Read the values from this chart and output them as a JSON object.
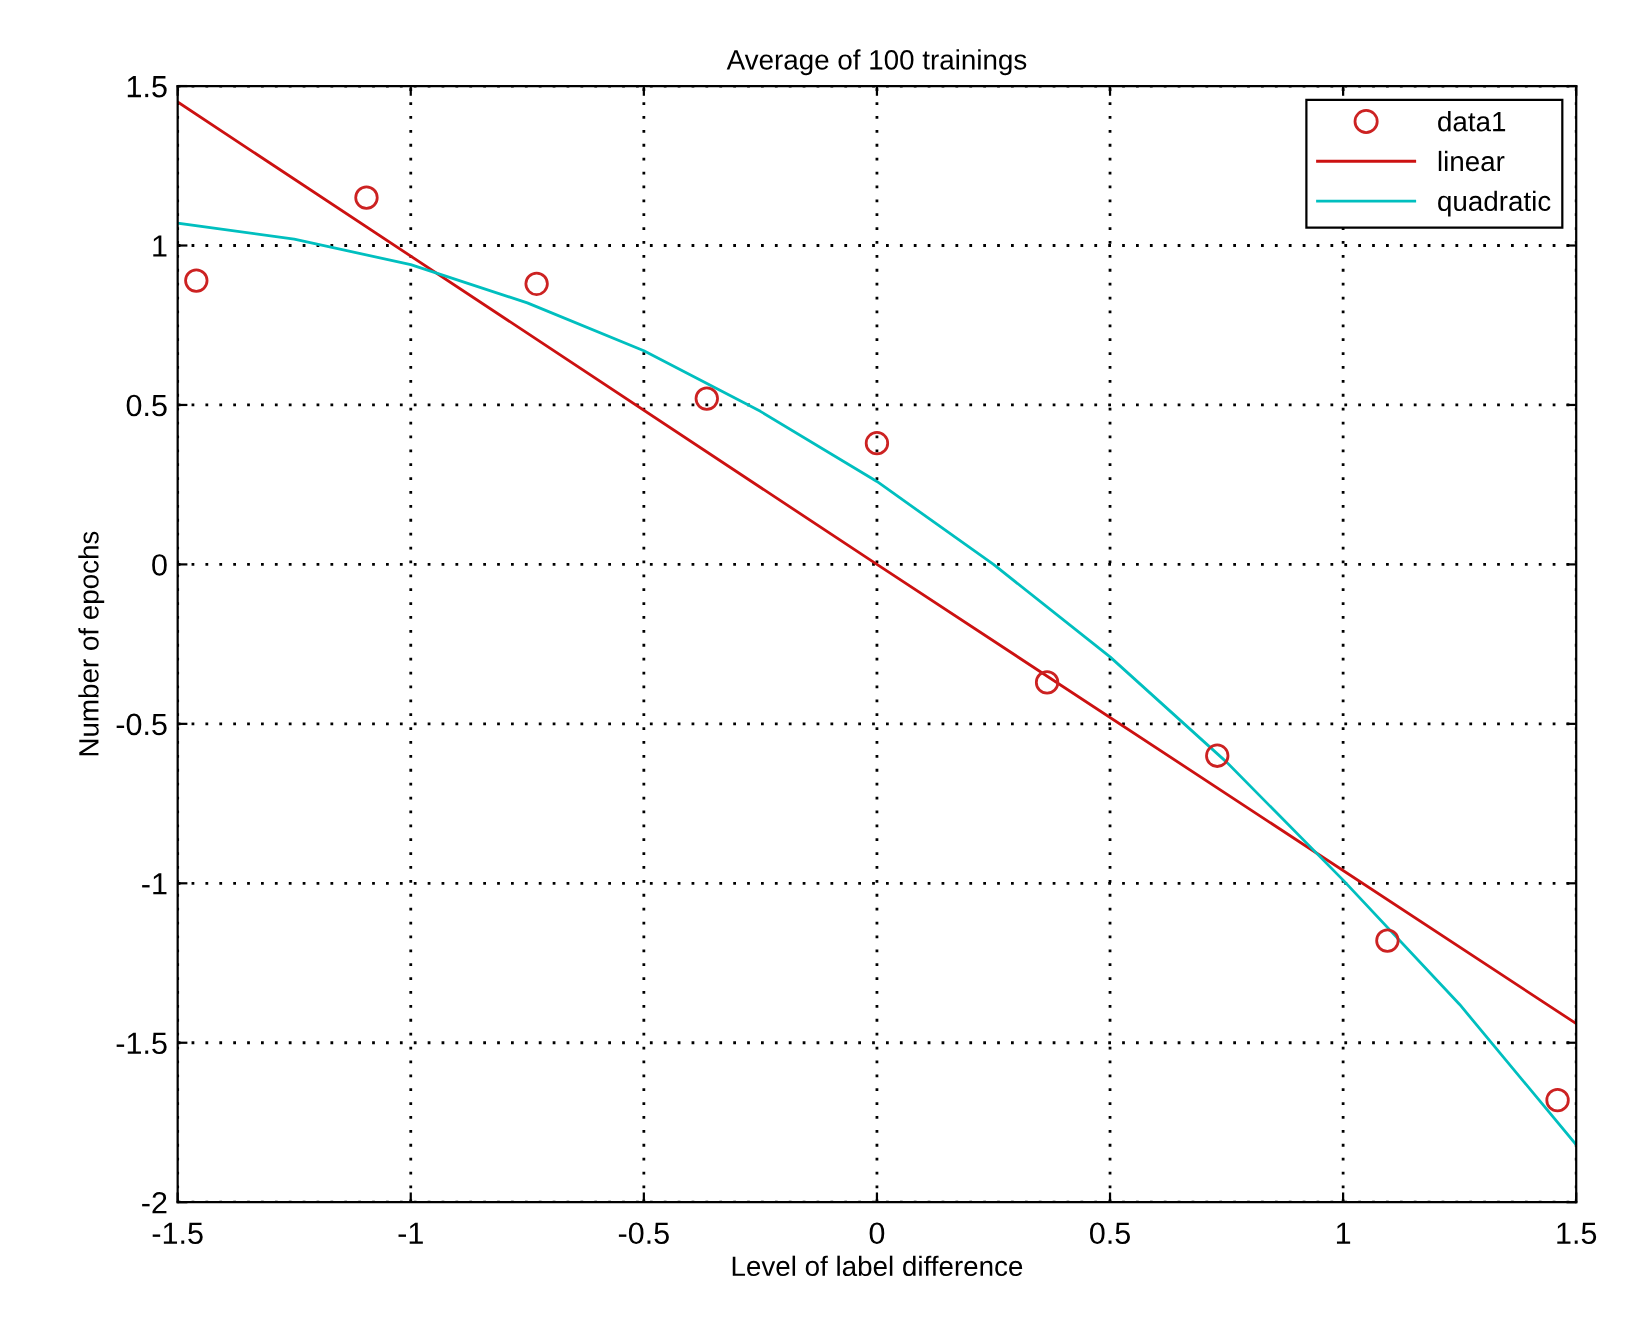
{
  "chart_data": {
    "type": "line",
    "title": "Average of 100 trainings",
    "xlabel": "Level of label difference",
    "ylabel": "Number of epochs",
    "series": [
      {
        "name": "data1",
        "type": "scatter",
        "marker": "circle",
        "color": "#cc2222",
        "x": [
          -1.46,
          -1.095,
          -0.73,
          -0.365,
          0,
          0.365,
          0.73,
          1.095,
          1.46
        ],
        "values": [
          0.89,
          1.15,
          0.88,
          0.52,
          0.38,
          -0.37,
          -0.6,
          -1.18,
          -1.68
        ]
      },
      {
        "name": "linear",
        "color": "#cc1111",
        "x": [
          -1.5,
          0,
          1.5
        ],
        "values": [
          1.45,
          0,
          -1.44
        ]
      },
      {
        "name": "quadratic",
        "color": "#00bfbf",
        "x": [
          -1.5,
          -1.25,
          -1,
          -0.75,
          -0.5,
          -0.25,
          0,
          0.25,
          0.5,
          0.75,
          1,
          1.25,
          1.5
        ],
        "values": [
          1.07,
          1.02,
          0.94,
          0.82,
          0.67,
          0.48,
          0.26,
          0.0,
          -0.29,
          -0.62,
          -0.99,
          -1.38,
          -1.82
        ]
      }
    ],
    "xlim": [
      -1.5,
      1.5
    ],
    "xticks": [
      -1.5,
      -1,
      -0.5,
      0,
      0.5,
      1,
      1.5
    ],
    "ylim": [
      -2,
      1.5
    ],
    "yticks": [
      -2,
      -1.5,
      -1,
      -0.5,
      0,
      0.5,
      1,
      1.5
    ],
    "grid": true,
    "legend": "top right"
  }
}
